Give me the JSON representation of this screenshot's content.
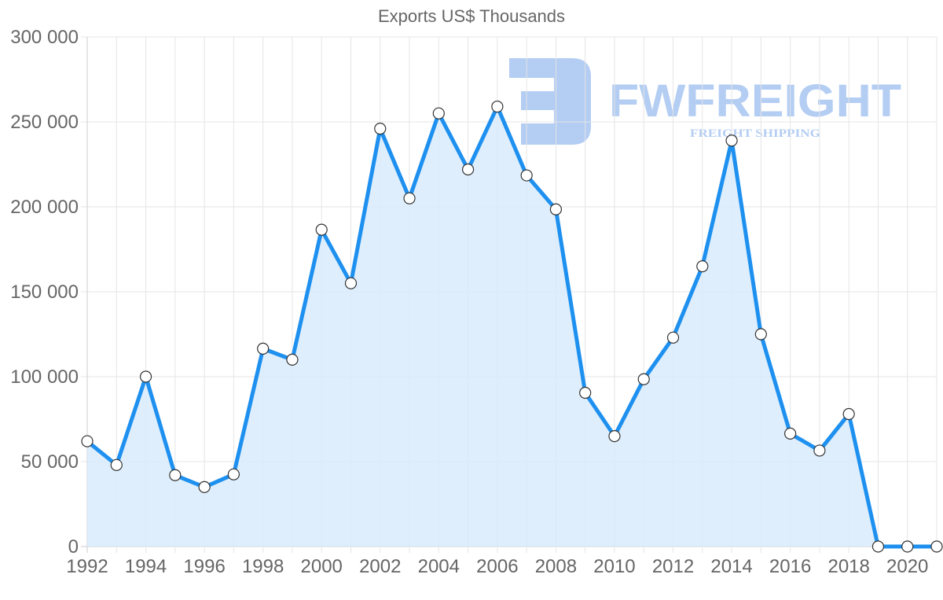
{
  "chart_data": {
    "type": "area",
    "title": "Exports US$ Thousands",
    "xlabel": "",
    "ylabel": "",
    "ylim": [
      0,
      300000
    ],
    "grid": true,
    "legend": "none",
    "x": [
      1992,
      1993,
      1994,
      1995,
      1996,
      1997,
      1998,
      1999,
      2000,
      2001,
      2002,
      2003,
      2004,
      2005,
      2006,
      2007,
      2008,
      2009,
      2010,
      2011,
      2012,
      2013,
      2014,
      2015,
      2016,
      2017,
      2018,
      2019,
      2020,
      2021
    ],
    "series": [
      {
        "name": "Exports US$ Thousands",
        "color": "#1e90ef",
        "fill": "#d8ebfc",
        "values": [
          62000,
          48000,
          100000,
          42000,
          35000,
          42500,
          116500,
          110000,
          186500,
          155000,
          246000,
          205000,
          255000,
          222000,
          259000,
          218500,
          198500,
          90500,
          65000,
          98500,
          123000,
          165000,
          239000,
          125000,
          66500,
          56500,
          78000,
          0,
          0,
          0
        ]
      }
    ],
    "y_ticks": [
      "0",
      "50 000",
      "100 000",
      "150 000",
      "200 000",
      "250 000",
      "300 000"
    ],
    "x_ticks": [
      "1992",
      "1994",
      "1996",
      "1998",
      "2000",
      "2002",
      "2004",
      "2006",
      "2008",
      "2010",
      "2012",
      "2014",
      "2016",
      "2018",
      "2020"
    ]
  },
  "watermark": {
    "brand": "FWFREIGHT",
    "tagline": "FREIGHT SHIPPING",
    "color": "#b3cdf3"
  }
}
